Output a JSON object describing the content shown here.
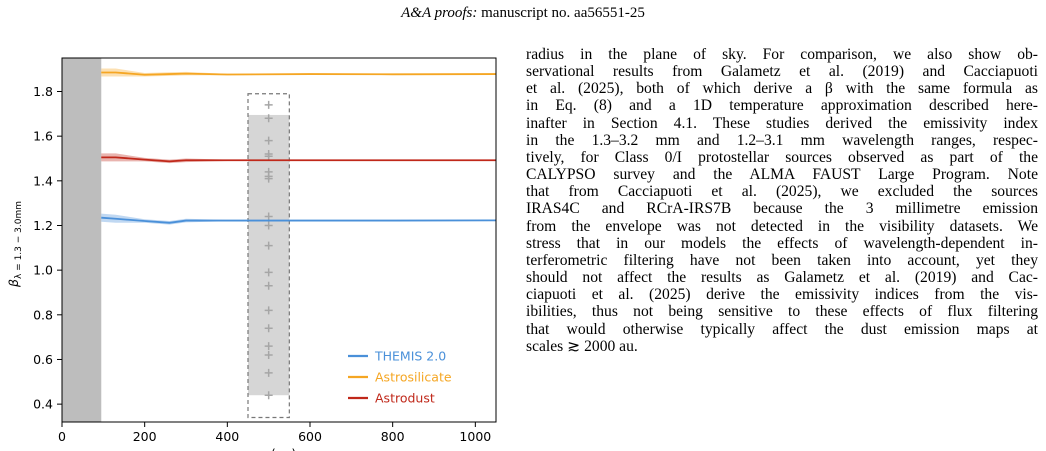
{
  "header": {
    "journal": "A&A proofs:",
    "manuscript": " manuscript no. aa56551-25"
  },
  "chart_data": {
    "type": "line",
    "xlabel": "r (au)",
    "ylabel": "β_{λ = 1.3 − 3.0mm}",
    "xlim": [
      0,
      1050
    ],
    "ylim": [
      0.32,
      1.95
    ],
    "xticks": [
      0,
      200,
      400,
      600,
      800,
      1000
    ],
    "yticks": [
      0.4,
      0.6,
      0.8,
      1.0,
      1.2,
      1.4,
      1.6,
      1.8
    ],
    "masked_region": [
      0,
      95
    ],
    "series": [
      {
        "name": "THEMIS 2.0",
        "color": "#4a90d9",
        "x": [
          95,
          130,
          200,
          260,
          300,
          400,
          600,
          800,
          1050
        ],
        "y": [
          1.235,
          1.23,
          1.22,
          1.212,
          1.222,
          1.222,
          1.222,
          1.222,
          1.223
        ]
      },
      {
        "name": "Astrosilicate",
        "color": "#f5a623",
        "x": [
          95,
          130,
          200,
          260,
          300,
          400,
          600,
          800,
          1050
        ],
        "y": [
          1.885,
          1.885,
          1.875,
          1.878,
          1.88,
          1.876,
          1.878,
          1.877,
          1.878
        ]
      },
      {
        "name": "Astrodust",
        "color": "#c0281a",
        "x": [
          95,
          130,
          200,
          260,
          300,
          400,
          600,
          800,
          1050
        ],
        "y": [
          1.505,
          1.505,
          1.495,
          1.487,
          1.492,
          1.492,
          1.492,
          1.492,
          1.492
        ]
      }
    ],
    "observations_x": 500,
    "observations": {
      "galametz_box": {
        "x": [
          450,
          550
        ],
        "y": [
          0.44,
          1.695
        ]
      },
      "cacciapuoti_box": {
        "x": [
          450,
          550
        ],
        "y": [
          0.34,
          1.79
        ]
      },
      "points": [
        1.74,
        1.68,
        1.58,
        1.52,
        1.51,
        1.44,
        1.42,
        1.41,
        1.24,
        1.2,
        1.11,
        0.99,
        0.93,
        0.82,
        0.74,
        0.66,
        0.62,
        0.54,
        0.44
      ]
    },
    "legend_position": "lower right"
  },
  "body_lines": [
    "radius in the plane of sky. For comparison, we also show ob-",
    "servational results from Galametz et al. (2019) and Cacciapuoti",
    "et al. (2025), both of which derive a β with the same formula as",
    "in Eq. (8) and a 1D temperature approximation described here-",
    "inafter in Section 4.1. These studies derived the emissivity index",
    "in the 1.3–3.2 mm and 1.2–3.1 mm wavelength ranges, respec-",
    "tively, for Class 0/I protostellar sources observed as part of the",
    "CALYPSO survey and the ALMA FAUST Large Program. Note",
    "that from Cacciapuoti et al. (2025), we excluded the sources",
    "IRAS4C and RCrA-IRS7B because the 3 millimetre emission",
    "from the envelope was not detected in the visibility datasets. We",
    "stress that in our models the effects of wavelength-dependent in-",
    "terferometric filtering have not been taken into account, yet they",
    "should not affect the results as Galametz et al. (2019) and Cac-",
    "ciapuoti et al. (2025) derive the emissivity indices from the vis-",
    "ibilities, thus not being sensitive to these effects of flux filtering",
    "that would otherwise typically affect the dust emission maps at",
    "scales ≳ 2000 au."
  ]
}
